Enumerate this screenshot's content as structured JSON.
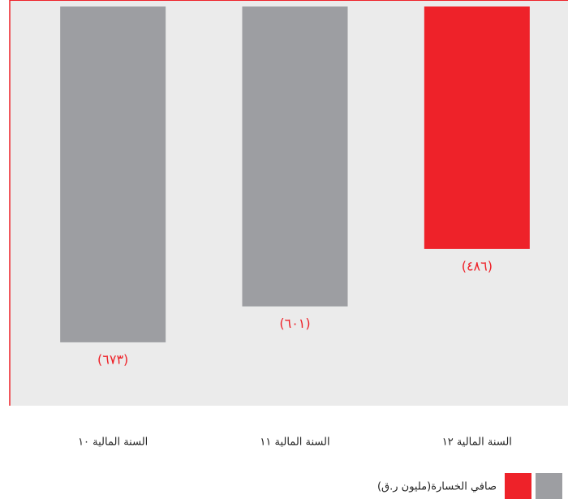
{
  "chart_data": {
    "type": "bar",
    "categories": [
      "السنة المالية ١٠",
      "السنة المالية ١١",
      "السنة المالية ١٢"
    ],
    "values": [
      -673,
      -601,
      -486
    ],
    "value_labels": [
      "(٦٧٣)",
      "(٦٠١)",
      "(٤٨٦)"
    ],
    "colors": [
      "#9d9ea2",
      "#9d9ea2",
      "#ee2229"
    ],
    "ylim": [
      -800,
      0
    ],
    "legend": {
      "label": "صافي الخسارة(مليون ر.ق)",
      "colors": [
        "#ee2229",
        "#9d9ea2"
      ]
    }
  }
}
